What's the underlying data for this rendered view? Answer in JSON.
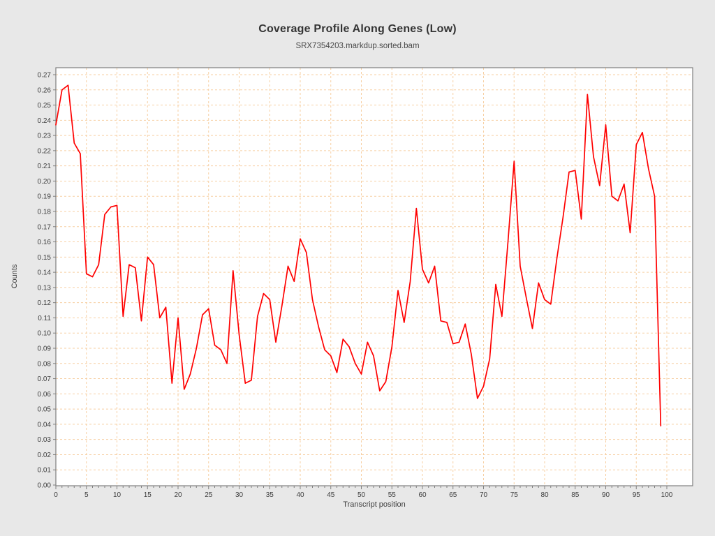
{
  "page": {
    "title": "Coverage Profile Along Genes (Low)",
    "subtitle": "SRX7354203.markdup.sorted.bam"
  },
  "colors": {
    "background": "#e8e8e8",
    "plot_background": "#ffffff",
    "grid": "#f7cfa2",
    "frame": "#7f7f7f",
    "tick_text": "#3d3d3d",
    "line": "#ff0000"
  },
  "chart_data": {
    "type": "line",
    "title": "Coverage Profile Along Genes (Low)",
    "subtitle": "SRX7354203.markdup.sorted.bam",
    "xlabel": "Transcript position",
    "ylabel": "Counts",
    "xlim": [
      0,
      104.3
    ],
    "ylim": [
      0.0,
      0.2745
    ],
    "x_ticks": [
      0,
      5,
      10,
      15,
      20,
      25,
      30,
      35,
      40,
      45,
      50,
      55,
      60,
      65,
      70,
      75,
      80,
      85,
      90,
      95,
      100
    ],
    "y_tick_step": 0.01,
    "y_tick_max": 0.27,
    "grid": "dashed, horizontal every 0.01, vertical every 5",
    "legend": "none",
    "line_color": "#ff0000",
    "x": [
      0,
      1,
      2,
      3,
      4,
      5,
      6,
      7,
      8,
      9,
      10,
      11,
      12,
      13,
      14,
      15,
      16,
      17,
      18,
      19,
      20,
      21,
      22,
      23,
      24,
      25,
      26,
      27,
      28,
      29,
      30,
      31,
      32,
      33,
      34,
      35,
      36,
      37,
      38,
      39,
      40,
      41,
      42,
      43,
      44,
      45,
      46,
      47,
      48,
      49,
      50,
      51,
      52,
      53,
      54,
      55,
      56,
      57,
      58,
      59,
      60,
      61,
      62,
      63,
      64,
      65,
      66,
      67,
      68,
      69,
      70,
      71,
      72,
      73,
      74,
      75,
      76,
      77,
      78,
      79,
      80,
      81,
      82,
      83,
      84,
      85,
      86,
      87,
      88,
      89,
      90,
      91,
      92,
      93,
      94,
      95,
      96,
      97,
      98,
      99
    ],
    "values": [
      0.237,
      0.26,
      0.263,
      0.225,
      0.218,
      0.139,
      0.137,
      0.145,
      0.178,
      0.183,
      0.184,
      0.111,
      0.145,
      0.143,
      0.108,
      0.15,
      0.145,
      0.11,
      0.117,
      0.067,
      0.11,
      0.063,
      0.073,
      0.09,
      0.112,
      0.116,
      0.092,
      0.089,
      0.08,
      0.141,
      0.099,
      0.067,
      0.069,
      0.111,
      0.126,
      0.122,
      0.094,
      0.118,
      0.144,
      0.134,
      0.162,
      0.153,
      0.122,
      0.104,
      0.089,
      0.085,
      0.074,
      0.096,
      0.091,
      0.08,
      0.073,
      0.094,
      0.085,
      0.062,
      0.068,
      0.091,
      0.128,
      0.107,
      0.134,
      0.182,
      0.142,
      0.133,
      0.144,
      0.108,
      0.107,
      0.093,
      0.094,
      0.106,
      0.086,
      0.057,
      0.065,
      0.083,
      0.132,
      0.111,
      0.16,
      0.213,
      0.144,
      0.123,
      0.103,
      0.133,
      0.122,
      0.119,
      0.149,
      0.176,
      0.206,
      0.207,
      0.175,
      0.257,
      0.216,
      0.197,
      0.237,
      0.19,
      0.187,
      0.198,
      0.166,
      0.224,
      0.232,
      0.208,
      0.19,
      0.039
    ]
  }
}
